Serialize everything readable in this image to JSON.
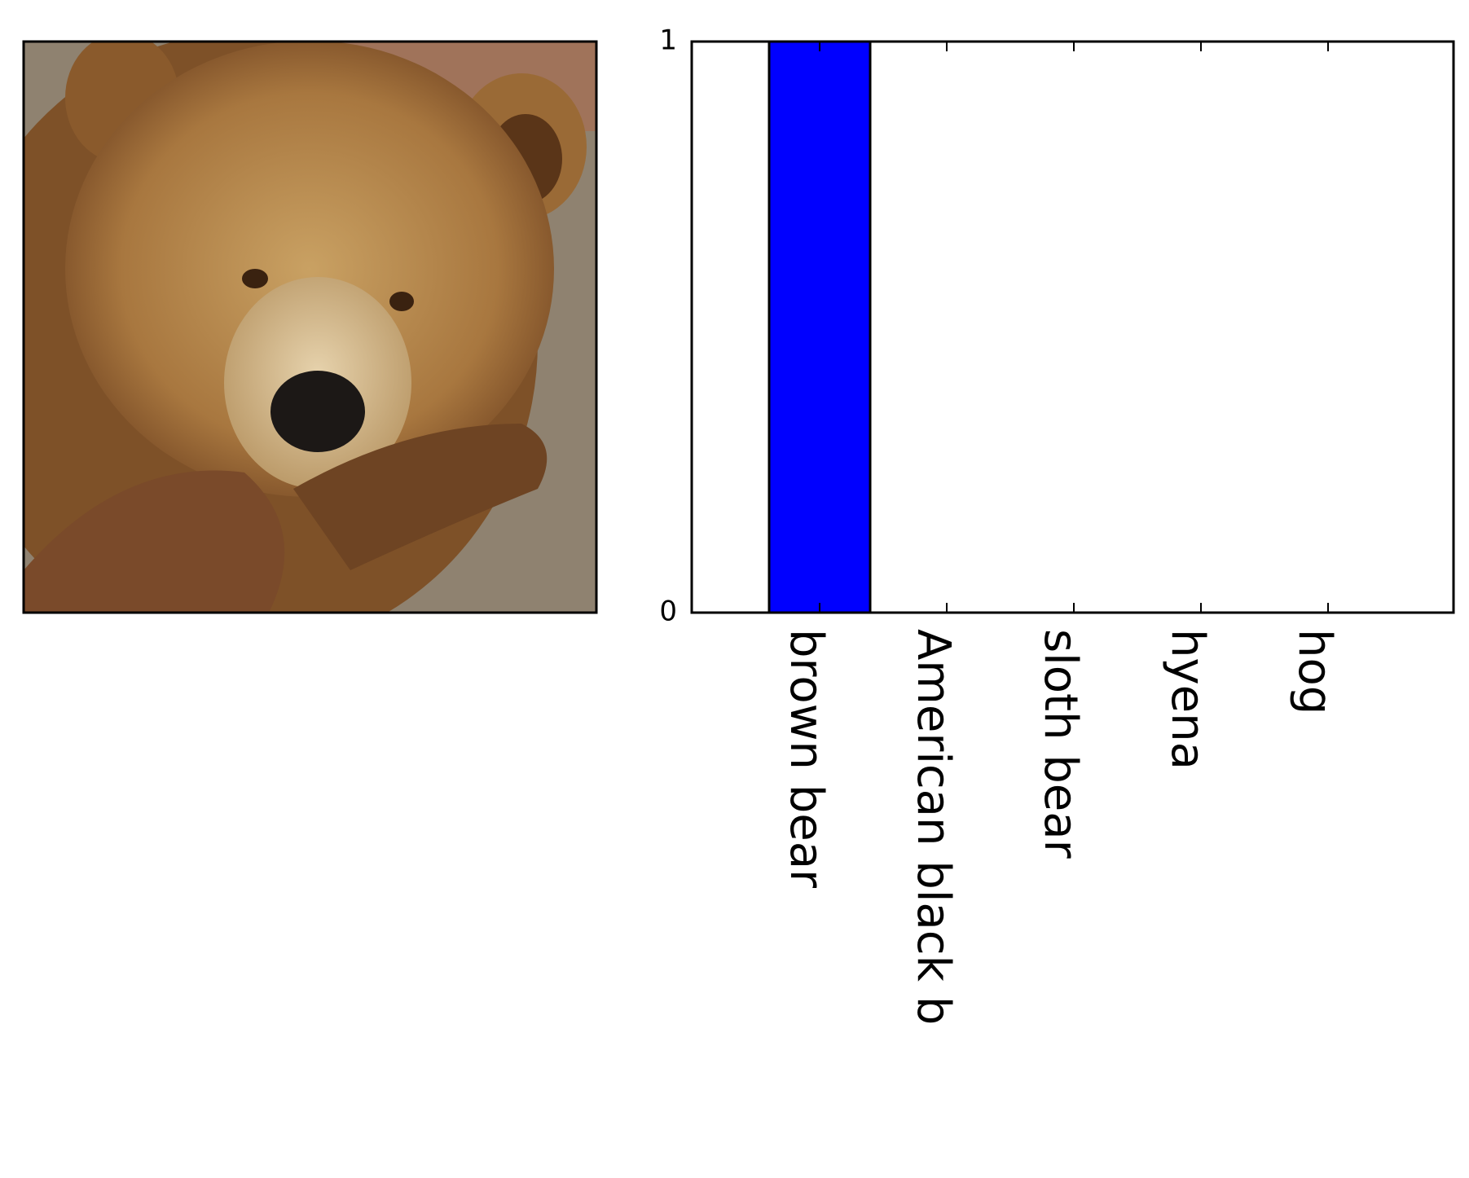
{
  "photo": {
    "subject": "brown-bear-photo",
    "colors": {
      "background_rock": "#8f8270",
      "fur_light": "#c9a163",
      "fur_mid": "#a8773f",
      "fur_dark": "#6e4423",
      "muzzle": "#d9c29a",
      "nose": "#1c1816",
      "eye": "#3a2210"
    }
  },
  "chart_data": {
    "type": "bar",
    "categories": [
      "brown bear",
      "American black b",
      "sloth bear",
      "hyena",
      "hog"
    ],
    "values": [
      1.0,
      0.0,
      0.0,
      0.0,
      0.0
    ],
    "ylim": [
      0,
      1
    ],
    "yticks": [
      "0",
      "1"
    ],
    "bar_color": "#0000ff",
    "xlabel": "",
    "ylabel": "",
    "title": "",
    "grid": false,
    "tick_label_rotation": "vertical"
  }
}
